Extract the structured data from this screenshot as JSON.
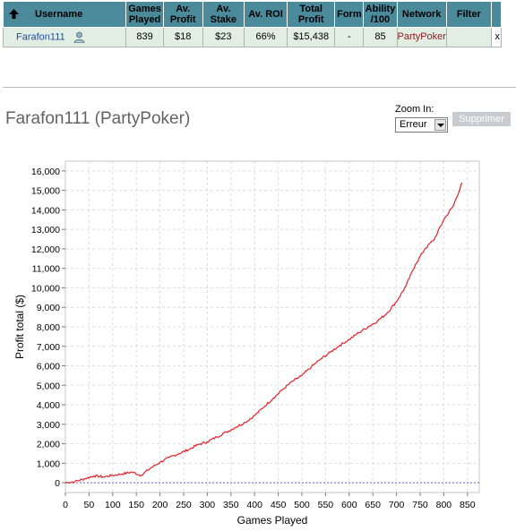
{
  "table": {
    "headers": {
      "username": "Username",
      "games_played": [
        "Games",
        "Played"
      ],
      "av_profit": [
        "Av.",
        "Profit"
      ],
      "av_stake": [
        "Av.",
        "Stake"
      ],
      "av_roi": "Av. ROI",
      "total_profit": [
        "Total",
        "Profit"
      ],
      "form": "Form",
      "ability": [
        "Ability",
        "/100"
      ],
      "network": "Network",
      "filter": "Filter"
    },
    "row": {
      "username": "Farafon111",
      "games_played": "839",
      "av_profit": "$18",
      "av_stake": "$23",
      "av_roi": "66%",
      "total_profit": "$15,438",
      "form": "-",
      "ability": "85",
      "network": "PartyPoker",
      "filter": "",
      "delete": "x"
    }
  },
  "player_title": "Farafon111 (PartyPoker)",
  "zoom": {
    "label": "Zoom In:",
    "selected": "Erreur"
  },
  "delete_button": "Supprimer",
  "colors": {
    "header_bg": "#4a8a9a",
    "row_bg": "#e2ede3",
    "line": "#e8202a",
    "zero_line": "#6666cc",
    "link": "#1f4f9a",
    "network": "#a01818"
  },
  "icons": {
    "sort": "up-arrow-icon",
    "user": "user-icon"
  },
  "chart_data": {
    "type": "line",
    "xlabel": "Games Played",
    "ylabel": "Profit total ($)",
    "xlim": [
      0,
      875
    ],
    "ylim": [
      -500,
      16500
    ],
    "x_ticks": [
      0,
      50,
      100,
      150,
      200,
      250,
      300,
      350,
      400,
      450,
      500,
      550,
      600,
      650,
      700,
      750,
      800,
      850
    ],
    "y_ticks": [
      0,
      1000,
      2000,
      3000,
      4000,
      5000,
      6000,
      7000,
      8000,
      9000,
      10000,
      11000,
      12000,
      13000,
      14000,
      15000,
      16000
    ],
    "y_tick_labels": [
      "0",
      "1,000",
      "2,000",
      "3,000",
      "4,000",
      "5,000",
      "6,000",
      "7,000",
      "8,000",
      "9,000",
      "10,000",
      "11,000",
      "12,000",
      "13,000",
      "14,000",
      "15,000",
      "16,000"
    ],
    "grid": true,
    "series": [
      {
        "x": [
          0,
          20,
          40,
          60,
          80,
          100,
          120,
          140,
          160,
          180,
          200,
          220,
          240,
          260,
          280,
          300,
          320,
          340,
          360,
          380,
          400,
          420,
          440,
          460,
          480,
          500,
          520,
          540,
          560,
          580,
          600,
          620,
          640,
          660,
          680,
          700,
          720,
          740,
          760,
          780,
          800,
          820,
          839
        ],
        "values": [
          0,
          60,
          200,
          350,
          300,
          380,
          450,
          550,
          380,
          750,
          1050,
          1300,
          1500,
          1700,
          1950,
          2100,
          2350,
          2600,
          2850,
          3100,
          3450,
          3900,
          4350,
          4800,
          5200,
          5500,
          5950,
          6350,
          6700,
          7050,
          7350,
          7700,
          8000,
          8300,
          8700,
          9300,
          10100,
          11200,
          12000,
          12500,
          13500,
          14200,
          15400
        ]
      }
    ],
    "baseline": 0
  }
}
